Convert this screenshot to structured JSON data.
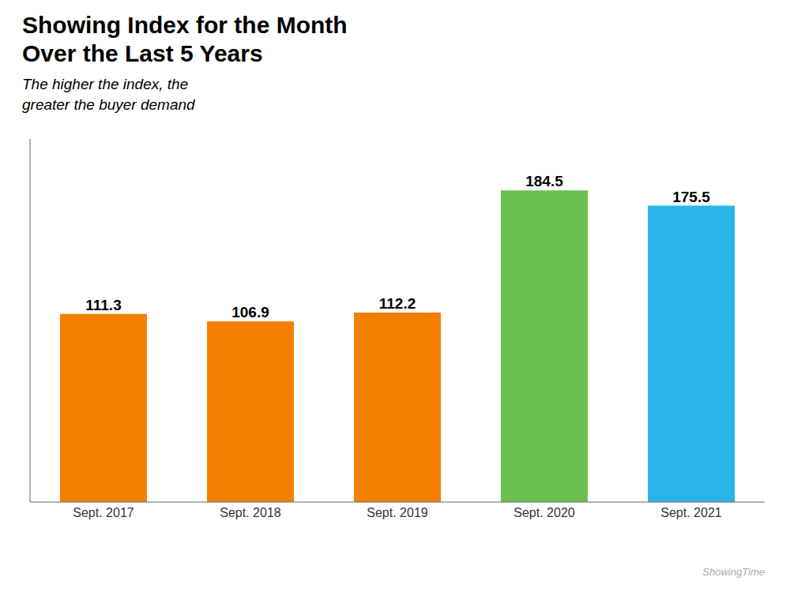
{
  "chart_data": {
    "type": "bar",
    "title": "Showing Index for the Month\nOver the Last 5 Years",
    "subtitle": "The higher the index, the\ngreater the buyer demand",
    "annotations": [
      "ShowingTime"
    ],
    "categories": [
      "Sept. 2017",
      "Sept. 2018",
      "Sept. 2019",
      "Sept. 2020",
      "Sept. 2021"
    ],
    "values": [
      111.3,
      106.9,
      112.2,
      184.5,
      175.5
    ],
    "colors": [
      "#F47F00",
      "#F47F00",
      "#F47F00",
      "#6BBF4E",
      "#29B5E8"
    ],
    "ylim": [
      0,
      215
    ],
    "grid": false,
    "data_labels": true,
    "tick_labels": "x"
  }
}
